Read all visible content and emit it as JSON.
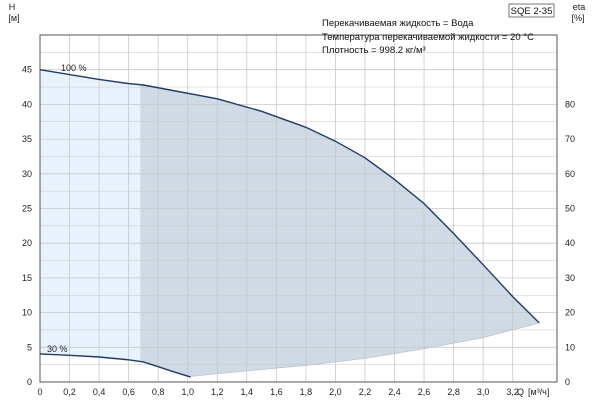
{
  "chart_data": {
    "type": "line",
    "model": "SQE 2-35",
    "y_axis_left": {
      "symbol": "H",
      "unit": "[м]",
      "ticks": [
        0,
        5,
        10,
        15,
        20,
        25,
        30,
        35,
        40,
        45
      ],
      "range": [
        0,
        50
      ]
    },
    "y_axis_right": {
      "symbol": "eta",
      "unit": "[%]",
      "ticks": [
        0,
        10,
        20,
        30,
        40,
        50,
        60,
        70,
        80
      ]
    },
    "x_axis": {
      "symbol": "Q",
      "unit": "[м³/ч]",
      "ticks": [
        "0",
        "0,2",
        "0,4",
        "0,6",
        "0,8",
        "1,0",
        "1,2",
        "1,4",
        "1,6",
        "1,8",
        "2,0",
        "2,2",
        "2,4",
        "2,6",
        "2,8",
        "3,0",
        "3,2"
      ],
      "range": [
        0,
        3.5
      ]
    },
    "info_lines": [
      "Перекачиваемая жидкость = Вода",
      "Температура перекачиваемой жидкости = 20 °C",
      "Плотность = 998.2 кг/м³"
    ],
    "speed_labels": [
      "100 %",
      "30 %"
    ],
    "series": [
      {
        "name": "100 %",
        "x": [
          0,
          0.2,
          0.4,
          0.6,
          0.7,
          0.9,
          1.2,
          1.5,
          1.8,
          2.0,
          2.2,
          2.4,
          2.6,
          2.8,
          3.0,
          3.2,
          3.38
        ],
        "y": [
          45,
          44.3,
          43.6,
          43,
          42.8,
          42,
          40.8,
          39,
          36.7,
          34.7,
          32.3,
          29.2,
          25.7,
          21.4,
          16.9,
          12.3,
          8.5
        ]
      },
      {
        "name": "30 %",
        "x": [
          0,
          0.2,
          0.4,
          0.6,
          0.7,
          0.8,
          0.9,
          1.02
        ],
        "y": [
          4.05,
          3.85,
          3.6,
          3.2,
          2.9,
          2.2,
          1.5,
          0.7
        ]
      }
    ],
    "operating_range_lower": {
      "x": [
        1.02,
        1.4,
        1.8,
        2.2,
        2.6,
        3.0,
        3.38
      ],
      "y": [
        0.8,
        1.6,
        2.4,
        3.4,
        4.8,
        6.4,
        8.5
      ]
    },
    "grid": true,
    "colors": {
      "curve": "#1f3b66",
      "region_light": "#e8f2fc",
      "region_main": "#cfdae4",
      "grid": "#c8c8c8"
    }
  }
}
